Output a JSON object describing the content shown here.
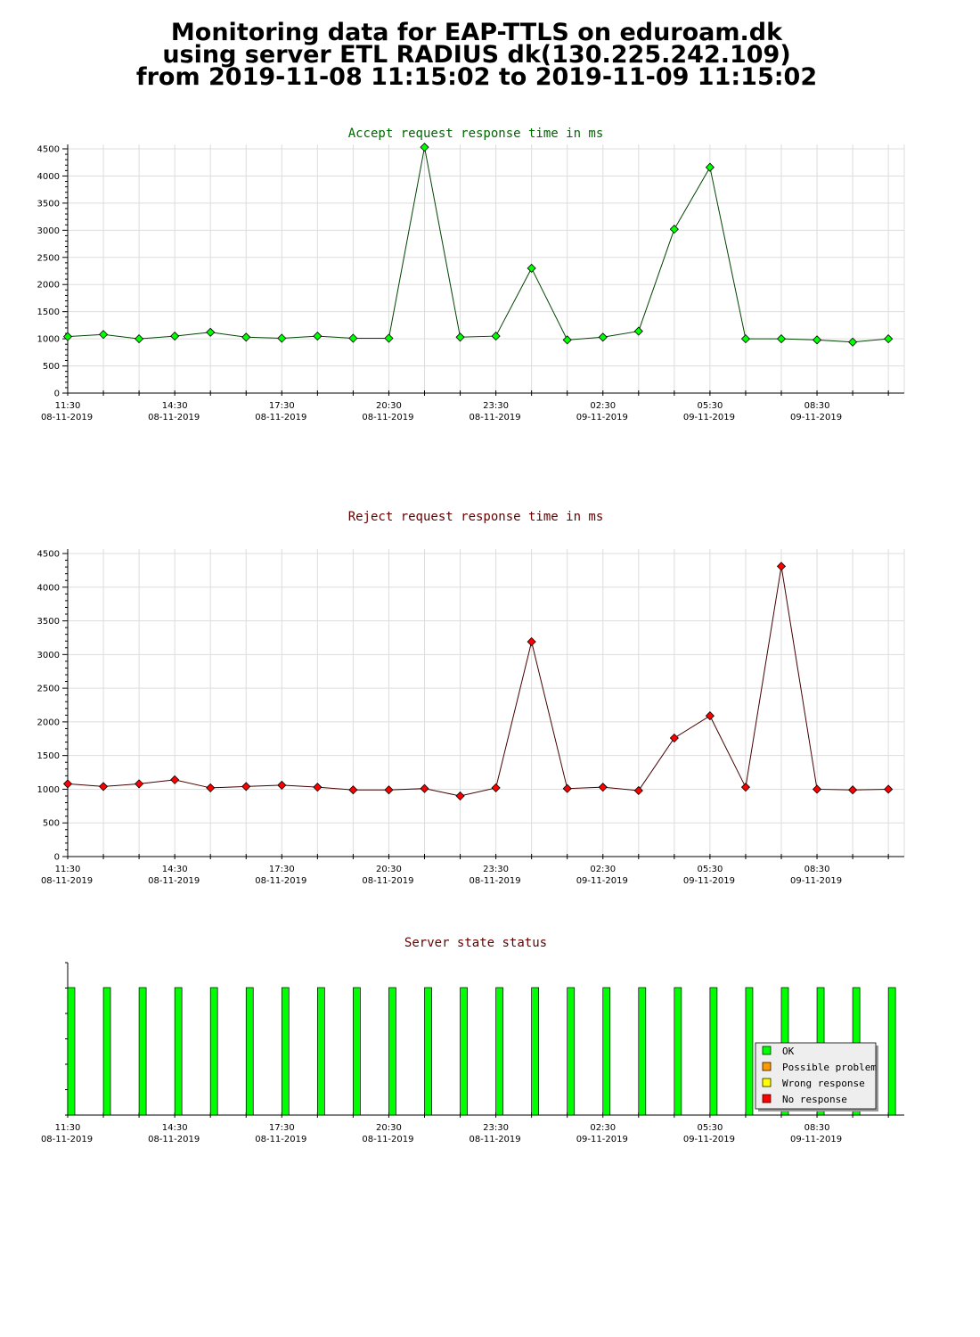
{
  "header": {
    "line1": "Monitoring data for EAP-TTLS on eduroam.dk",
    "line2": "using server ETL RADIUS dk(130.225.242.109)",
    "line3": "from 2019-11-08 11:15:02 to 2019-11-09 11:15:02"
  },
  "colors": {
    "ok": "#00ff00",
    "possible_problem": "#ff9900",
    "wrong_response": "#ffff00",
    "no_response": "#ff0000",
    "accept_title": "#006600",
    "reject_title": "#660000",
    "accept_line": "#004400",
    "reject_line": "#440000"
  },
  "x_axis": {
    "times": [
      "11:30",
      "14:30",
      "17:30",
      "20:30",
      "23:30",
      "02:30",
      "05:30",
      "08:30"
    ],
    "dates": [
      "08-11-2019",
      "08-11-2019",
      "08-11-2019",
      "08-11-2019",
      "08-11-2019",
      "09-11-2019",
      "09-11-2019",
      "09-11-2019"
    ]
  },
  "chart_data": [
    {
      "type": "line",
      "title": "Accept request response time in ms",
      "ylim": [
        0,
        4500
      ],
      "yticks": [
        "0",
        "500",
        "1000",
        "1500",
        "2000",
        "2500",
        "3000",
        "3500",
        "4000",
        "4500"
      ],
      "grid": true,
      "series": [
        {
          "values": [
            1040,
            1080,
            1000,
            1050,
            1120,
            1030,
            1010,
            1050,
            1010,
            1010,
            4530,
            1030,
            1050,
            2300,
            980,
            1030,
            1140,
            3020,
            4160,
            1000,
            1000,
            980,
            940,
            1000
          ]
        }
      ]
    },
    {
      "type": "line",
      "title": "Reject request response time in ms",
      "ylim": [
        0,
        4500
      ],
      "yticks": [
        "0",
        "500",
        "1000",
        "1500",
        "2000",
        "2500",
        "3000",
        "3500",
        "4000",
        "4500"
      ],
      "grid": true,
      "series": [
        {
          "values": [
            1080,
            1040,
            1080,
            1140,
            1020,
            1040,
            1060,
            1030,
            990,
            990,
            1010,
            900,
            1020,
            3190,
            1010,
            1030,
            980,
            1760,
            2090,
            1030,
            4310,
            1000,
            990,
            1000
          ]
        }
      ]
    },
    {
      "type": "bar",
      "title": "Server state status",
      "legend": [
        "OK",
        "Possible problem",
        "Wrong response",
        "No response"
      ],
      "legend_position": "bottom-right",
      "states": [
        "OK",
        "OK",
        "OK",
        "OK",
        "OK",
        "OK",
        "OK",
        "OK",
        "OK",
        "OK",
        "OK",
        "OK",
        "OK",
        "OK",
        "OK",
        "OK",
        "OK",
        "OK",
        "OK",
        "OK",
        "OK",
        "OK",
        "OK",
        "OK"
      ]
    }
  ]
}
